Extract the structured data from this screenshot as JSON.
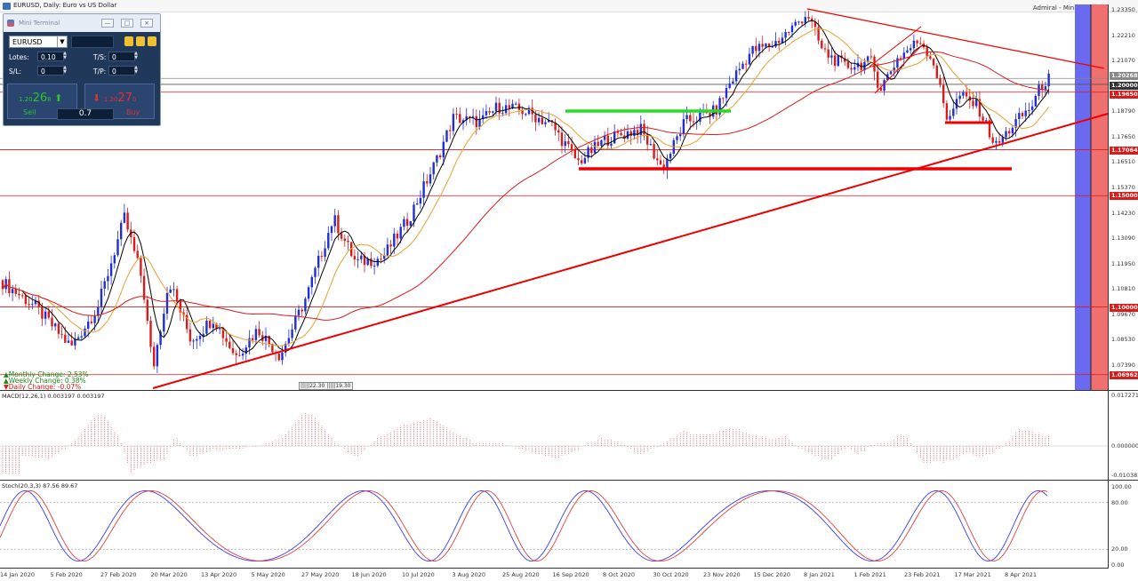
{
  "window": {
    "title": "EURUSD, Daily:  Euro vs US Dollar",
    "broker_label": "Admiral - Mini Terminal"
  },
  "mini_terminal": {
    "title": "Mini Terminal",
    "minimize": "—",
    "restore": "□",
    "close": "×",
    "symbol": "EURUSD",
    "lots_label": "Lotes:",
    "lots_value": "0.10",
    "ts_label": "T/S:",
    "ts_value": "0",
    "sl_label": "S/L:",
    "sl_value": "0",
    "tp_label": "T/P:",
    "tp_value": "0",
    "sell_price_small": "1.20",
    "sell_price_big": "26",
    "sell_price_sup": "8",
    "buy_price_small": "1.20",
    "buy_price_big": "27",
    "buy_price_sup": "0",
    "sell_label": "Sell",
    "buy_label": "Buy",
    "lot_display": "0.7"
  },
  "changes": {
    "monthly": "Monthly Change:  2.53%",
    "weekly": "Weekly Change:  0.38%",
    "daily": "Daily Change:  -0.07%"
  },
  "indicators": {
    "macd_label": "MACD(12,26,1) 0.003197 0.003197",
    "stoch_label": "Stoch(20,3,3) 87.56 89.67"
  },
  "price_axis": [
    "1.23350",
    "1.22210",
    "1.21070",
    "1.19930",
    "1.18790",
    "1.17650",
    "1.16510",
    "1.15370",
    "1.14230",
    "1.13090",
    "1.11950",
    "1.10810",
    "1.09670",
    "1.08530",
    "1.07390"
  ],
  "price_markers": {
    "bid": "1.20268",
    "level_120000": "1.20000",
    "level_119650": "1.19650",
    "level_117064": "1.17064",
    "level_115000": "1.15000",
    "level_110000": "1.10000",
    "level_106962": "1.06962"
  },
  "macd_axis": [
    "0.017271",
    "0.000000",
    "-0.010383"
  ],
  "stoch_axis": [
    "100.00",
    "80.00",
    "20.00",
    "0.00"
  ],
  "date_axis": [
    "14 Jan 2020",
    "5 Feb 2020",
    "27 Feb 2020",
    "20 Mar 2020",
    "13 Apr 2020",
    "5 May 2020",
    "27 May 2020",
    "18 Jun 2020",
    "10 Jul 2020",
    "3 Aug 2020",
    "25 Aug 2020",
    "16 Sep 2020",
    "8 Oct 2020",
    "30 Oct 2020",
    "23 Nov 2020",
    "15 Dec 2020",
    "8 Jan 2021",
    "1 Feb 2021",
    "23 Feb 2021",
    "17 Mar 2021",
    "8 Apr 2021"
  ],
  "crosshair_labels": [
    "22.30",
    "19.30"
  ],
  "colors": {
    "bull": "#1f2fd6",
    "bear": "#d81b1b",
    "ma_fast": "#000000",
    "ma_mid": "#e8a030",
    "ma_slow": "#d81b1b",
    "support_green": "#22dd22",
    "support_red": "#ee0000",
    "blue_band": "#6a6af0",
    "red_band": "#f07070"
  }
}
